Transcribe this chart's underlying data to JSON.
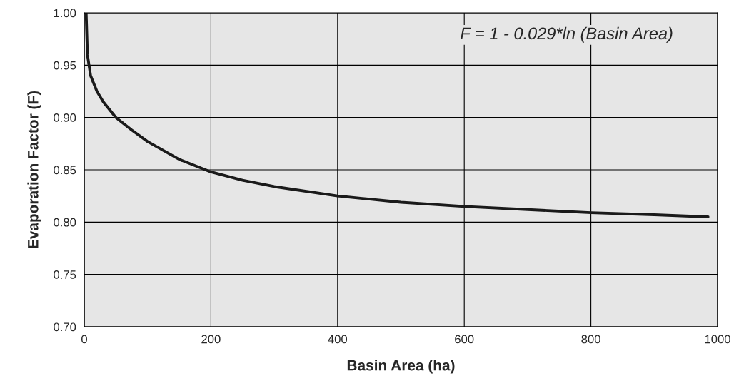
{
  "chart_data": {
    "type": "line",
    "xlabel": "Basin Area (ha)",
    "ylabel": "Evaporation Factor (F)",
    "annotations": [
      "F = 1 - 0.029*ln (Basin Area)"
    ],
    "x": [
      3,
      5,
      10,
      20,
      30,
      50,
      75,
      100,
      150,
      200,
      250,
      300,
      400,
      500,
      600,
      700,
      800,
      900,
      985
    ],
    "series": [
      {
        "color": "#1a1a1a",
        "values": [
          1.0,
          0.96,
          0.94,
          0.925,
          0.915,
          0.9,
          0.888,
          0.877,
          0.86,
          0.848,
          0.84,
          0.834,
          0.825,
          0.819,
          0.815,
          0.812,
          0.809,
          0.807,
          0.805
        ]
      }
    ],
    "xlim": [
      0,
      1000
    ],
    "ylim": [
      0.7,
      1.0
    ],
    "xticks": [
      0,
      200,
      400,
      600,
      800,
      1000
    ],
    "yticks": [
      {
        "value": 0.7,
        "label": "0.70"
      },
      0.75,
      {
        "value": 0.8,
        "label": "0.80"
      },
      0.85,
      {
        "value": 0.9,
        "label": "0.90"
      },
      0.95,
      {
        "value": 1.0,
        "label": "1.00"
      }
    ],
    "grid": true,
    "marker": "none",
    "line_style": "solid"
  }
}
